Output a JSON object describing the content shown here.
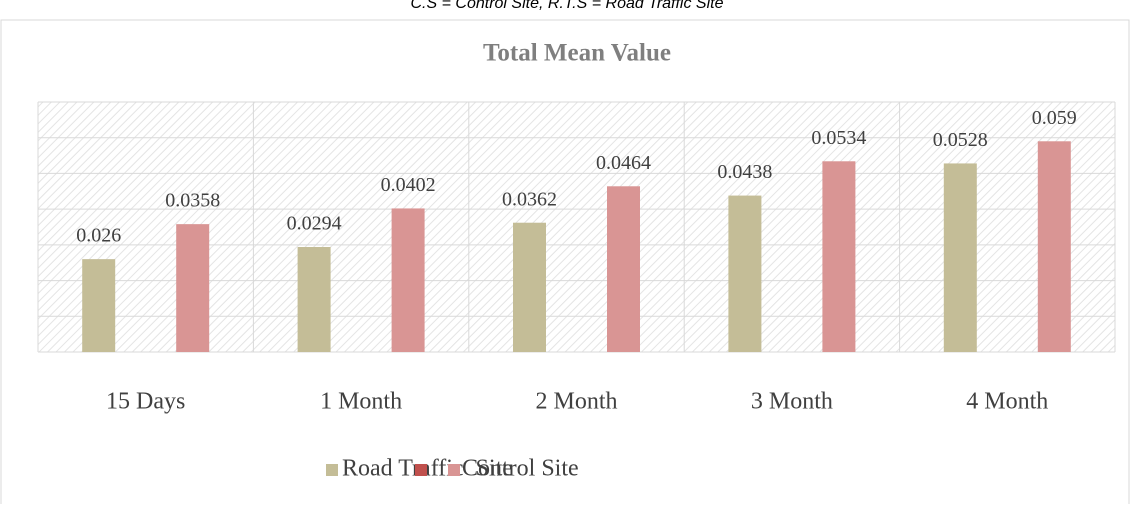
{
  "chart_data": {
    "type": "bar",
    "caption": "C.S = Control Site, R.T.S = Road Traffic Site",
    "title": "Total Mean Value",
    "categories": [
      "15 Days",
      "1 Month",
      "2 Month",
      "3 Month",
      "4 Month"
    ],
    "series": [
      {
        "name": "Road Traffic  Site",
        "color": "#c4bd97",
        "values": [
          0.026,
          0.0294,
          0.0362,
          0.0438,
          0.0528
        ]
      },
      {
        "name": "Control Site",
        "color": "#d99594",
        "values": [
          0.0358,
          0.0402,
          0.0464,
          0.0534,
          0.059
        ]
      }
    ],
    "ylim": [
      0,
      0.07
    ],
    "yticks": [
      0,
      0.01,
      0.02,
      0.03,
      0.04,
      0.05,
      0.06,
      0.07
    ],
    "grid": true,
    "legend": "bottom"
  }
}
